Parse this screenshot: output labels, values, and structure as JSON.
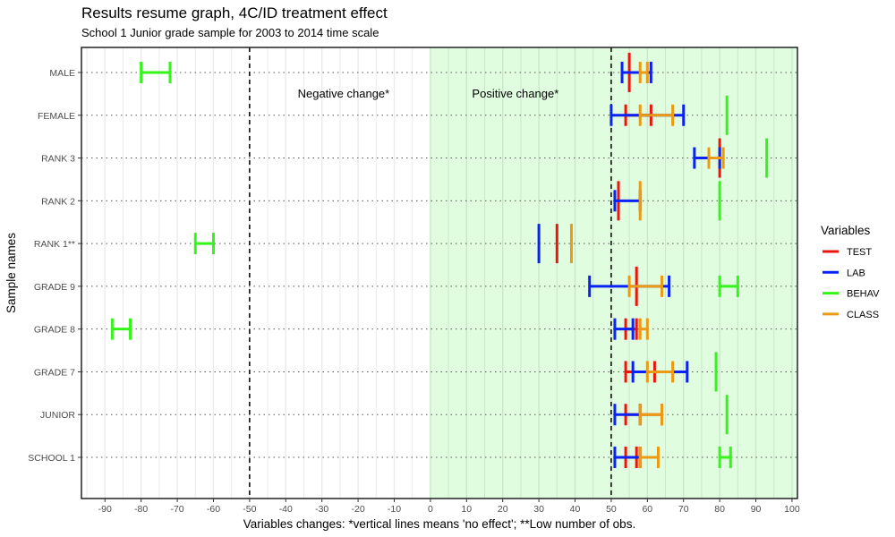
{
  "chart_data": {
    "type": "errorbar",
    "title": "Results resume graph, 4C/ID treatment effect",
    "subtitle": "School 1 Junior grade sample for 2003 to 2014 time scale",
    "xlabel": "Variables changes: *vertical lines means 'no effect'; **Low number of obs.",
    "ylabel": "Sample names",
    "xlim": [
      -96.5,
      101.5
    ],
    "xticks": [
      -90,
      -80,
      -70,
      -60,
      -50,
      -40,
      -30,
      -20,
      -10,
      0,
      10,
      20,
      30,
      40,
      50,
      60,
      70,
      80,
      90,
      100
    ],
    "reference_lines": [
      -50,
      50
    ],
    "shaded_region": [
      0,
      101.5
    ],
    "shaded_color": "#e0fde0",
    "annotations": [
      {
        "text": "Negative change*",
        "x": -24,
        "y_category": "MALE"
      },
      {
        "text": "Positive change*",
        "x": 23.5,
        "y_category": "MALE"
      }
    ],
    "categories": [
      "SCHOOL 1",
      "JUNIOR",
      "GRADE 7",
      "GRADE 8",
      "GRADE 9",
      "RANK 1**",
      "RANK 2",
      "RANK 3",
      "FEMALE",
      "MALE"
    ],
    "legend": {
      "title": "Variables",
      "position": "right"
    },
    "series": [
      {
        "name": "TEST",
        "color": "#e8160c",
        "ranges": [
          [
            54,
            57
          ],
          [
            54,
            64
          ],
          [
            54,
            62
          ],
          [
            54,
            57
          ],
          [
            57,
            57
          ],
          [
            35,
            35
          ],
          [
            52,
            52
          ],
          [
            80,
            80
          ],
          [
            54,
            61
          ],
          [
            55,
            55
          ]
        ]
      },
      {
        "name": "LAB",
        "color": "#0a22f5",
        "ranges": [
          [
            51,
            58
          ],
          [
            51,
            58
          ],
          [
            56,
            71
          ],
          [
            51,
            56
          ],
          [
            44,
            66
          ],
          [
            30,
            30
          ],
          [
            51,
            58
          ],
          [
            73,
            80
          ],
          [
            50,
            70
          ],
          [
            53,
            61
          ]
        ]
      },
      {
        "name": "BEHAV",
        "color": "#33f51a",
        "ranges": [
          [
            80,
            83
          ],
          [
            82,
            82
          ],
          [
            79,
            79
          ],
          [
            -88,
            -83
          ],
          [
            80,
            85
          ],
          [
            -65,
            -60
          ],
          [
            80,
            80
          ],
          [
            93,
            93
          ],
          [
            82,
            82
          ],
          [
            -80,
            -72
          ]
        ]
      },
      {
        "name": "CLASS",
        "color": "#ec9a14",
        "ranges": [
          [
            58,
            63
          ],
          [
            58,
            64
          ],
          [
            60,
            67
          ],
          [
            58,
            60
          ],
          [
            55,
            64
          ],
          [
            39,
            39
          ],
          [
            58,
            58
          ],
          [
            77,
            81
          ],
          [
            58,
            67
          ],
          [
            58,
            60
          ]
        ]
      }
    ]
  }
}
